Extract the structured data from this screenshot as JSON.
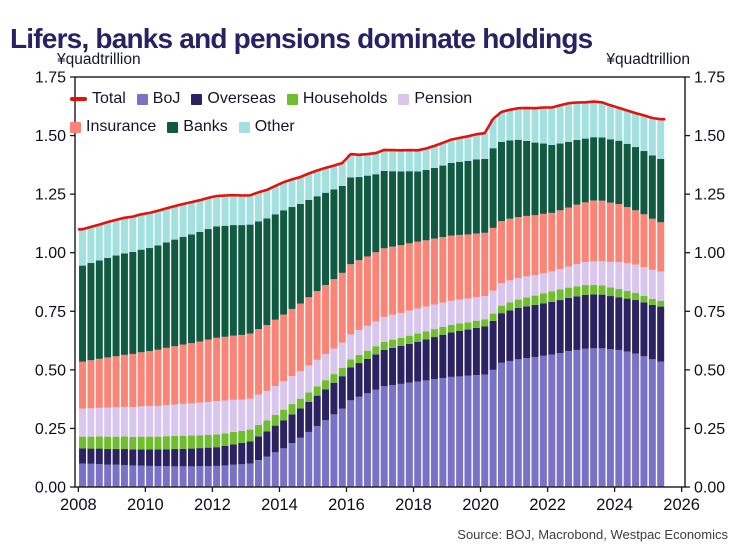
{
  "title": "Lifers, banks and pensions dominate holdings",
  "axis_unit_left": "¥quadtrillion",
  "axis_unit_right": "¥quadtrillion",
  "source": "Source: BOJ, Macrobond, Westpac Economics",
  "colors": {
    "title": "#262263",
    "axis_text": "#0e0e1a",
    "frame": "#1a1a1a",
    "source_text": "#3c3c3c",
    "total_line": "#e3120b",
    "boj": "#7a72c7",
    "overseas": "#2b2361",
    "households": "#6fbe2e",
    "pension": "#d9c6ef",
    "insurance": "#fa8577",
    "banks": "#0f5a41",
    "other": "#a2e1e0"
  },
  "legend": {
    "rows": [
      [
        {
          "label": "Total",
          "color": "#e3120b",
          "type": "line"
        },
        {
          "label": "BoJ",
          "color": "#7a72c7",
          "type": "square"
        },
        {
          "label": "Overseas",
          "color": "#2b2361",
          "type": "square"
        },
        {
          "label": "Households",
          "color": "#6fbe2e",
          "type": "square"
        },
        {
          "label": "Pension",
          "color": "#d9c6ef",
          "type": "square"
        }
      ],
      [
        {
          "label": "Insurance",
          "color": "#fa8577",
          "type": "square"
        },
        {
          "label": "Banks",
          "color": "#0f5a41",
          "type": "square"
        },
        {
          "label": "Other",
          "color": "#a2e1e0",
          "type": "square"
        }
      ]
    ]
  },
  "chart_data": {
    "type": "bar",
    "subtype": "stacked quarterly bars with total line overlay",
    "title": "Lifers, banks and pensions dominate holdings",
    "ylabel": "¥quadtrillion",
    "x": {
      "start": 2008,
      "step": 0.25,
      "count": 70,
      "unit": "year-quarter"
    },
    "xlim": [
      2007.9,
      2026.1
    ],
    "ylim": [
      0,
      1.75
    ],
    "grid": false,
    "legend_position": "top-left inside plot",
    "y_ticks": [
      {
        "v": 0.0,
        "label": "0.00"
      },
      {
        "v": 0.25,
        "label": "0.25"
      },
      {
        "v": 0.5,
        "label": "0.50"
      },
      {
        "v": 0.75,
        "label": "0.75"
      },
      {
        "v": 1.0,
        "label": "1.00"
      },
      {
        "v": 1.25,
        "label": "1.25"
      },
      {
        "v": 1.5,
        "label": "1.50"
      },
      {
        "v": 1.75,
        "label": "1.75"
      }
    ],
    "x_ticks": [
      {
        "v": 2008,
        "label": "2008"
      },
      {
        "v": 2010,
        "label": "2010"
      },
      {
        "v": 2012,
        "label": "2012"
      },
      {
        "v": 2014,
        "label": "2014"
      },
      {
        "v": 2016,
        "label": "2016"
      },
      {
        "v": 2018,
        "label": "2018"
      },
      {
        "v": 2020,
        "label": "2020"
      },
      {
        "v": 2022,
        "label": "2022"
      },
      {
        "v": 2024,
        "label": "2024"
      },
      {
        "v": 2026,
        "label": "2026"
      }
    ],
    "series": [
      {
        "name": "BoJ",
        "color": "#7a72c7",
        "values": [
          0.1,
          0.099,
          0.098,
          0.096,
          0.095,
          0.094,
          0.092,
          0.091,
          0.09,
          0.089,
          0.089,
          0.088,
          0.088,
          0.088,
          0.089,
          0.089,
          0.09,
          0.092,
          0.095,
          0.097,
          0.1,
          0.115,
          0.13,
          0.148,
          0.165,
          0.187,
          0.21,
          0.235,
          0.26,
          0.285,
          0.31,
          0.335,
          0.37,
          0.385,
          0.4,
          0.415,
          0.43,
          0.435,
          0.44,
          0.445,
          0.45,
          0.455,
          0.46,
          0.465,
          0.47,
          0.472,
          0.475,
          0.478,
          0.48,
          0.5,
          0.53,
          0.538,
          0.545,
          0.55,
          0.555,
          0.56,
          0.565,
          0.572,
          0.58,
          0.585,
          0.59,
          0.592,
          0.592,
          0.588,
          0.585,
          0.578,
          0.57,
          0.558,
          0.545,
          0.535
        ]
      },
      {
        "name": "Overseas",
        "color": "#2b2361",
        "values": [
          0.065,
          0.065,
          0.066,
          0.066,
          0.067,
          0.068,
          0.068,
          0.069,
          0.07,
          0.071,
          0.072,
          0.074,
          0.075,
          0.076,
          0.077,
          0.079,
          0.08,
          0.083,
          0.087,
          0.091,
          0.095,
          0.101,
          0.107,
          0.114,
          0.12,
          0.123,
          0.125,
          0.128,
          0.13,
          0.132,
          0.135,
          0.138,
          0.14,
          0.144,
          0.147,
          0.151,
          0.155,
          0.159,
          0.162,
          0.166,
          0.17,
          0.175,
          0.18,
          0.185,
          0.19,
          0.194,
          0.197,
          0.201,
          0.205,
          0.209,
          0.212,
          0.216,
          0.22,
          0.221,
          0.222,
          0.224,
          0.225,
          0.226,
          0.227,
          0.229,
          0.23,
          0.23,
          0.229,
          0.227,
          0.225,
          0.226,
          0.228,
          0.23,
          0.232,
          0.235
        ]
      },
      {
        "name": "Households",
        "color": "#6fbe2e",
        "values": [
          0.05,
          0.051,
          0.052,
          0.053,
          0.053,
          0.054,
          0.054,
          0.055,
          0.055,
          0.055,
          0.056,
          0.056,
          0.056,
          0.056,
          0.055,
          0.055,
          0.055,
          0.054,
          0.053,
          0.051,
          0.05,
          0.049,
          0.047,
          0.046,
          0.045,
          0.044,
          0.042,
          0.041,
          0.04,
          0.039,
          0.037,
          0.036,
          0.035,
          0.035,
          0.035,
          0.035,
          0.035,
          0.035,
          0.035,
          0.035,
          0.035,
          0.034,
          0.034,
          0.033,
          0.032,
          0.032,
          0.031,
          0.031,
          0.03,
          0.031,
          0.032,
          0.034,
          0.035,
          0.038,
          0.04,
          0.043,
          0.045,
          0.045,
          0.044,
          0.043,
          0.042,
          0.041,
          0.039,
          0.037,
          0.035,
          0.033,
          0.03,
          0.028,
          0.026,
          0.025
        ]
      },
      {
        "name": "Pension",
        "color": "#d9c6ef",
        "values": [
          0.12,
          0.121,
          0.122,
          0.124,
          0.125,
          0.126,
          0.127,
          0.129,
          0.13,
          0.131,
          0.133,
          0.134,
          0.136,
          0.137,
          0.139,
          0.14,
          0.142,
          0.14,
          0.137,
          0.134,
          0.132,
          0.129,
          0.126,
          0.123,
          0.121,
          0.119,
          0.117,
          0.115,
          0.113,
          0.111,
          0.109,
          0.107,
          0.106,
          0.106,
          0.106,
          0.106,
          0.106,
          0.106,
          0.106,
          0.107,
          0.107,
          0.106,
          0.105,
          0.104,
          0.103,
          0.102,
          0.101,
          0.1,
          0.1,
          0.098,
          0.096,
          0.094,
          0.092,
          0.09,
          0.088,
          0.086,
          0.085,
          0.087,
          0.09,
          0.094,
          0.098,
          0.1,
          0.104,
          0.109,
          0.115,
          0.118,
          0.121,
          0.123,
          0.124,
          0.125
        ]
      },
      {
        "name": "Insurance",
        "color": "#fa8577",
        "values": [
          0.2,
          0.205,
          0.209,
          0.214,
          0.218,
          0.222,
          0.227,
          0.231,
          0.235,
          0.24,
          0.244,
          0.249,
          0.253,
          0.257,
          0.261,
          0.266,
          0.27,
          0.272,
          0.274,
          0.276,
          0.278,
          0.28,
          0.281,
          0.283,
          0.285,
          0.287,
          0.289,
          0.291,
          0.293,
          0.295,
          0.296,
          0.298,
          0.3,
          0.298,
          0.296,
          0.295,
          0.293,
          0.291,
          0.289,
          0.287,
          0.285,
          0.283,
          0.281,
          0.28,
          0.278,
          0.276,
          0.274,
          0.272,
          0.27,
          0.268,
          0.265,
          0.263,
          0.26,
          0.258,
          0.255,
          0.253,
          0.25,
          0.251,
          0.252,
          0.254,
          0.255,
          0.26,
          0.258,
          0.253,
          0.248,
          0.24,
          0.232,
          0.225,
          0.218,
          0.21
        ]
      },
      {
        "name": "Banks",
        "color": "#0f5a41",
        "values": [
          0.41,
          0.415,
          0.42,
          0.425,
          0.43,
          0.433,
          0.435,
          0.438,
          0.44,
          0.445,
          0.45,
          0.455,
          0.46,
          0.464,
          0.468,
          0.472,
          0.475,
          0.474,
          0.472,
          0.469,
          0.465,
          0.46,
          0.455,
          0.45,
          0.445,
          0.435,
          0.425,
          0.415,
          0.405,
          0.394,
          0.383,
          0.371,
          0.37,
          0.355,
          0.345,
          0.333,
          0.33,
          0.322,
          0.315,
          0.308,
          0.3,
          0.3,
          0.302,
          0.305,
          0.31,
          0.312,
          0.314,
          0.316,
          0.315,
          0.34,
          0.338,
          0.334,
          0.33,
          0.32,
          0.31,
          0.3,
          0.29,
          0.285,
          0.28,
          0.276,
          0.272,
          0.27,
          0.27,
          0.27,
          0.27,
          0.27,
          0.27,
          0.27,
          0.27,
          0.27
        ]
      },
      {
        "name": "Other",
        "color": "#a2e1e0",
        "values": [
          0.155,
          0.154,
          0.153,
          0.153,
          0.152,
          0.152,
          0.151,
          0.151,
          0.15,
          0.148,
          0.145,
          0.143,
          0.14,
          0.138,
          0.135,
          0.133,
          0.13,
          0.129,
          0.128,
          0.126,
          0.125,
          0.124,
          0.122,
          0.121,
          0.12,
          0.118,
          0.115,
          0.113,
          0.11,
          0.106,
          0.102,
          0.098,
          0.1,
          0.095,
          0.092,
          0.09,
          0.09,
          0.09,
          0.09,
          0.09,
          0.09,
          0.092,
          0.094,
          0.097,
          0.1,
          0.102,
          0.105,
          0.108,
          0.11,
          0.125,
          0.128,
          0.131,
          0.135,
          0.141,
          0.147,
          0.154,
          0.16,
          0.163,
          0.165,
          0.16,
          0.155,
          0.152,
          0.15,
          0.145,
          0.14,
          0.142,
          0.145,
          0.152,
          0.16,
          0.17
        ]
      }
    ],
    "total_line": {
      "name": "Total",
      "color": "#e3120b",
      "derivation": "sum of stacked series per quarter"
    }
  }
}
